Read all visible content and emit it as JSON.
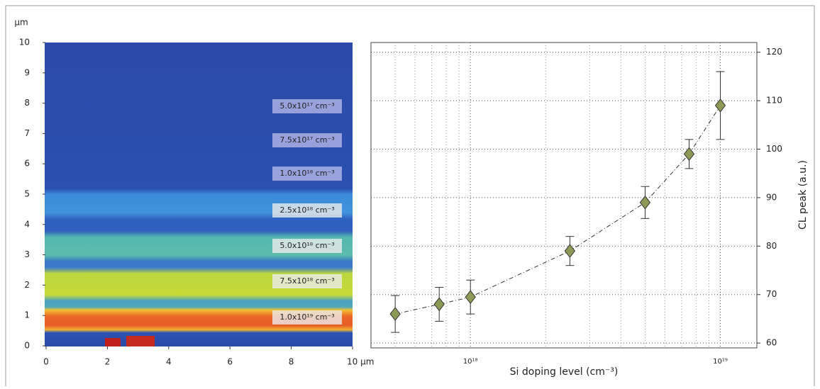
{
  "chart_data": [
    {
      "type": "image",
      "y_unit": "μm",
      "xlim": [
        0,
        10
      ],
      "xticks": [
        0,
        2,
        4,
        6,
        8,
        {
          "value": 10,
          "label": "10 μm"
        }
      ],
      "ylim": [
        0,
        10
      ],
      "yticks": [
        0,
        1,
        2,
        3,
        4,
        5,
        6,
        7,
        8,
        9,
        10
      ],
      "annotations": [
        "5.0x10¹⁷ cm⁻³",
        "7.5x10¹⁷ cm⁻³",
        "1.0x10¹⁸ cm⁻³",
        "2.5x10¹⁸ cm⁻³",
        "5.0x10¹⁸ cm⁻³",
        "7.5x10¹⁸ cm⁻³",
        "1.0x10¹⁹ cm⁻³"
      ]
    },
    {
      "type": "scatter",
      "xlabel": "Si doping level (cm⁻³)",
      "ylabel": "CL peak (a.u.)",
      "x": [
        5e+17,
        7.5e+17,
        1e+18,
        2.5e+18,
        5e+18,
        7.5e+18,
        1e+19
      ],
      "values": [
        66,
        68,
        69.5,
        79,
        89,
        99,
        109
      ],
      "errors": [
        3.8,
        3.5,
        3.5,
        3,
        3.3,
        3,
        7
      ],
      "color": "#8d9a56",
      "xscale": "log",
      "xlim": [
        4e+17,
        1.4e+19
      ],
      "xticks": [
        {
          "value": 1e+18,
          "label": "10¹⁸"
        },
        {
          "value": 1e+19,
          "label": "10¹⁹"
        }
      ],
      "ylim": [
        59,
        122
      ],
      "yticks": [
        60,
        70,
        80,
        90,
        100,
        110,
        120
      ],
      "grid": true,
      "trend_line": true
    }
  ]
}
